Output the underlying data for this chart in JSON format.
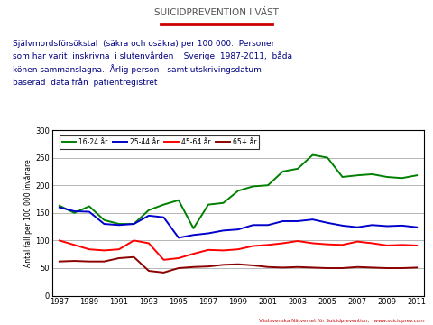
{
  "title": "SUICIDPREVENTION I VÄST",
  "subtitle": "Självmordsförsökstal  (säkra och osäkra) per 100 000.  Personer\nsom har varit  inskrivna  i slutenvården  i Sverige  1987-2011,  båda\nkönen sammanslagna.  Årlig person-  samt utskrivingsdatum-\nbaserad  data från  patientregistret",
  "footer": "Västsvenska Nätverket för Suicidprevention,   www.suicidprev.com",
  "ylabel": "Antal fall per 100 000 invånare",
  "ylim": [
    0,
    300
  ],
  "yticks": [
    0,
    50,
    100,
    150,
    200,
    250,
    300
  ],
  "xtick_years": [
    1987,
    1989,
    1991,
    1993,
    1995,
    1997,
    1999,
    2001,
    2003,
    2005,
    2007,
    2009,
    2011
  ],
  "green_years": [
    1987,
    1988,
    1989,
    1990,
    1991,
    1992,
    1993,
    1994,
    1995,
    1996,
    1997,
    1998,
    1999,
    2000,
    2001,
    2002,
    2003,
    2004,
    2005,
    2006,
    2007,
    2008,
    2009,
    2010,
    2011
  ],
  "green_vals": [
    163,
    150,
    162,
    137,
    130,
    130,
    155,
    165,
    173,
    122,
    165,
    168,
    190,
    198,
    200,
    225,
    230,
    255,
    250,
    215,
    218,
    220,
    215,
    213,
    218
  ],
  "blue_years": [
    1987,
    1988,
    1989,
    1990,
    1991,
    1992,
    1993,
    1994,
    1995,
    1996,
    1997,
    1998,
    1999,
    2000,
    2001,
    2002,
    2003,
    2004,
    2005,
    2006,
    2007,
    2008,
    2009,
    2010,
    2011
  ],
  "blue_vals": [
    160,
    153,
    152,
    130,
    128,
    130,
    145,
    142,
    105,
    110,
    113,
    118,
    120,
    128,
    128,
    135,
    135,
    138,
    132,
    127,
    124,
    128,
    126,
    127,
    124
  ],
  "red_years": [
    1987,
    1988,
    1989,
    1990,
    1991,
    1992,
    1993,
    1994,
    1995,
    1996,
    1997,
    1998,
    1999,
    2000,
    2001,
    2002,
    2003,
    2004,
    2005,
    2006,
    2007,
    2008,
    2009,
    2010,
    2011
  ],
  "red_vals": [
    100,
    92,
    84,
    82,
    84,
    100,
    95,
    65,
    68,
    76,
    83,
    82,
    84,
    90,
    92,
    95,
    99,
    95,
    93,
    92,
    98,
    95,
    91,
    92,
    91
  ],
  "darkred_years": [
    1987,
    1988,
    1989,
    1990,
    1991,
    1992,
    1993,
    1994,
    1995,
    1996,
    1997,
    1998,
    1999,
    2000,
    2001,
    2002,
    2003,
    2004,
    2005,
    2006,
    2007,
    2008,
    2009,
    2010,
    2011
  ],
  "darkred_vals": [
    62,
    63,
    62,
    62,
    68,
    70,
    45,
    42,
    50,
    52,
    53,
    56,
    57,
    55,
    52,
    51,
    52,
    51,
    50,
    50,
    52,
    51,
    50,
    50,
    51
  ],
  "green_color": "#008000",
  "blue_color": "#0000CC",
  "red_color": "#FF0000",
  "darkred_color": "#8B0000",
  "background_color": "#FFFFFF",
  "title_color": "#555555",
  "title_underline_color": "#CC0000",
  "subtitle_color": "#000080",
  "footer_color": "#CC0000",
  "legend_labels": [
    "16-24 år",
    "25-44 år",
    "45-64 år",
    "65+ år"
  ]
}
